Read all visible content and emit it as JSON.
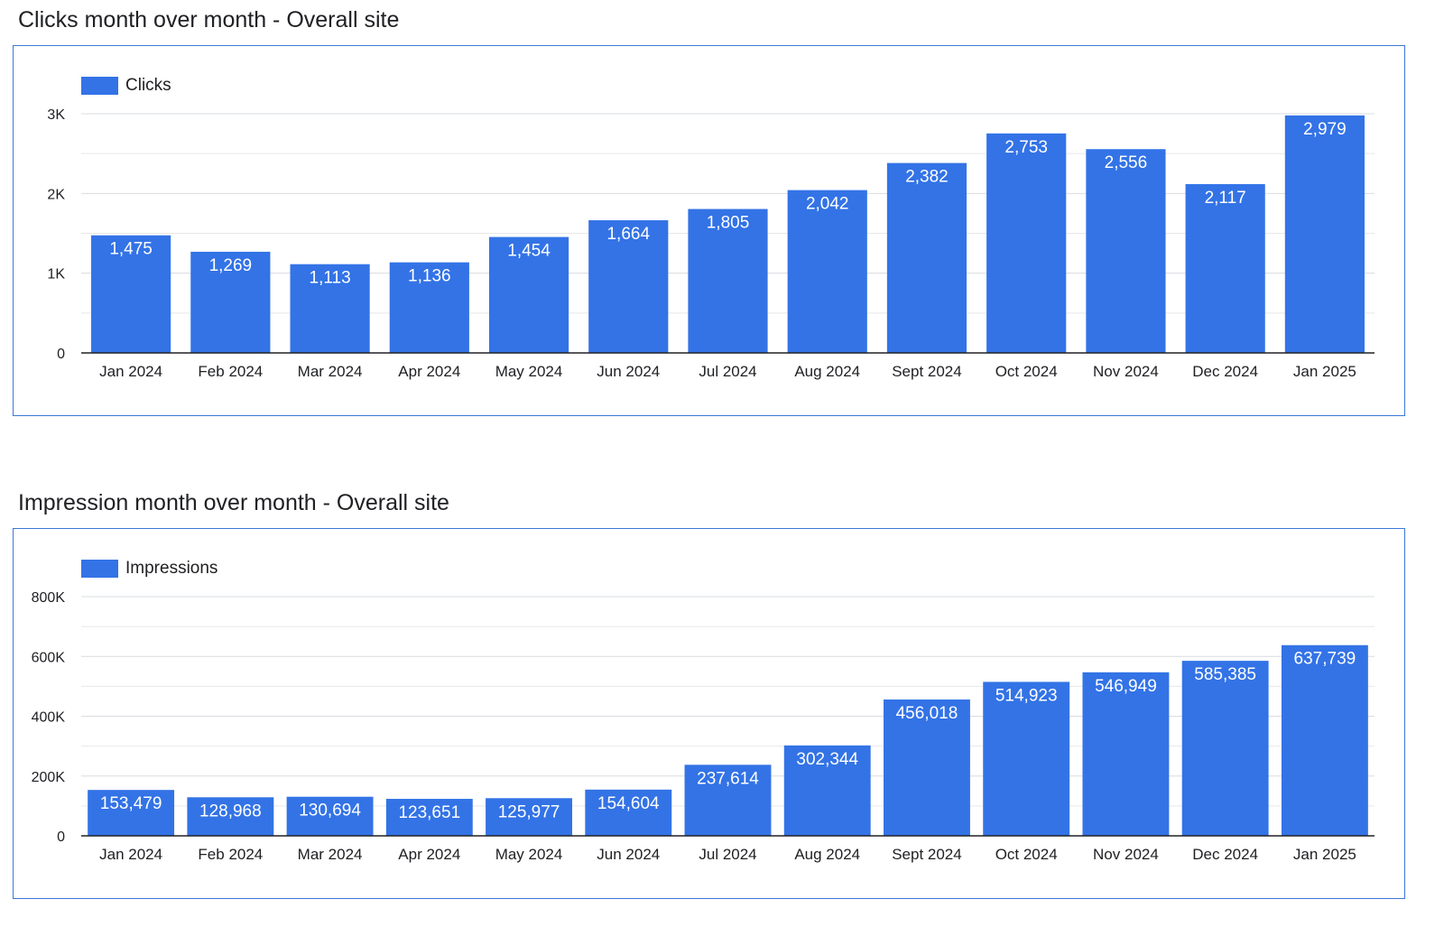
{
  "chart_data": [
    {
      "type": "bar",
      "title": "Clicks month over month - Overall site",
      "categories": [
        "Jan 2024",
        "Feb 2024",
        "Mar 2024",
        "Apr 2024",
        "May 2024",
        "Jun 2024",
        "Jul 2024",
        "Aug 2024",
        "Sept 2024",
        "Oct 2024",
        "Nov 2024",
        "Dec 2024",
        "Jan 2025"
      ],
      "series": [
        {
          "name": "Clicks",
          "values": [
            1475,
            1269,
            1113,
            1136,
            1454,
            1664,
            1805,
            2042,
            2382,
            2753,
            2556,
            2117,
            2979
          ],
          "value_labels": [
            "1,475",
            "1,269",
            "1,113",
            "1,136",
            "1,454",
            "1,664",
            "1,805",
            "2,042",
            "2,382",
            "2,753",
            "2,556",
            "2,117",
            "2,979"
          ]
        }
      ],
      "ylim": [
        0,
        3000
      ],
      "yticks": [
        0,
        1000,
        2000,
        3000
      ],
      "ytick_labels": [
        "0",
        "1K",
        "2K",
        "3K"
      ],
      "grid": true,
      "minor_grid": true,
      "legend": "top-left",
      "color": "#3373e6",
      "xlabel": "",
      "ylabel": ""
    },
    {
      "type": "bar",
      "title": "Impression month over month - Overall site",
      "categories": [
        "Jan 2024",
        "Feb 2024",
        "Mar 2024",
        "Apr 2024",
        "May 2024",
        "Jun 2024",
        "Jul 2024",
        "Aug 2024",
        "Sept 2024",
        "Oct 2024",
        "Nov 2024",
        "Dec 2024",
        "Jan 2025"
      ],
      "series": [
        {
          "name": "Impressions",
          "values": [
            153479,
            128968,
            130694,
            123651,
            125977,
            154604,
            237614,
            302344,
            456018,
            514923,
            546949,
            585385,
            637739
          ],
          "value_labels": [
            "153,479",
            "128,968",
            "130,694",
            "123,651",
            "125,977",
            "154,604",
            "237,614",
            "302,344",
            "456,018",
            "514,923",
            "546,949",
            "585,385",
            "637,739"
          ]
        }
      ],
      "ylim": [
        0,
        800000
      ],
      "yticks": [
        0,
        200000,
        400000,
        600000,
        800000
      ],
      "ytick_labels": [
        "0",
        "200K",
        "400K",
        "600K",
        "800K"
      ],
      "grid": true,
      "minor_grid": true,
      "legend": "top-left",
      "color": "#3373e6",
      "xlabel": "",
      "ylabel": ""
    }
  ]
}
